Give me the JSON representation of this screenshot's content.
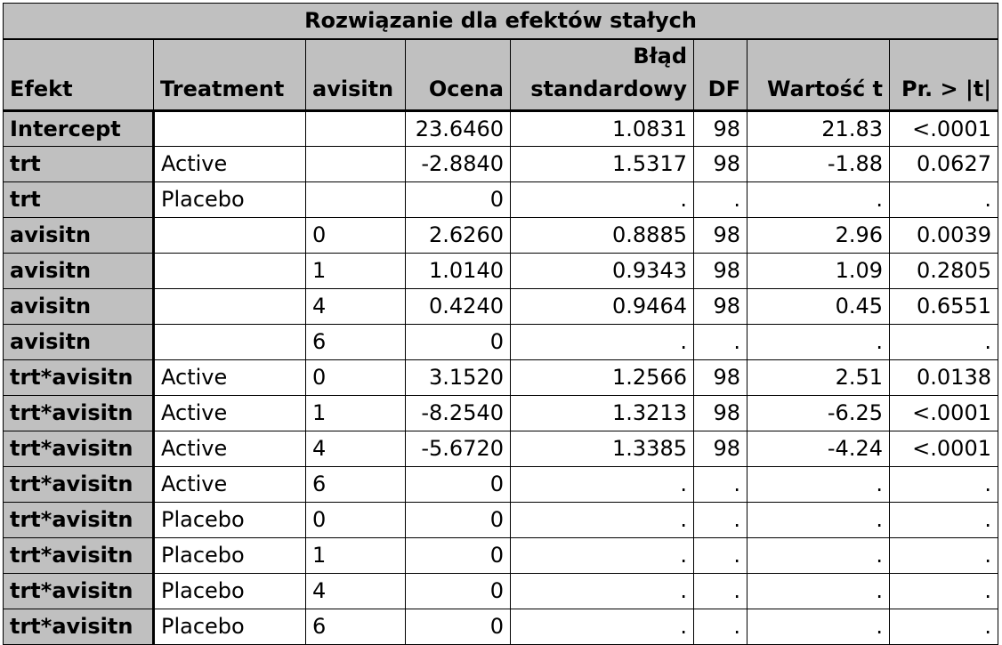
{
  "table": {
    "title": "Rozwiązanie dla efektów stałych",
    "headers": [
      {
        "key": "effect",
        "label": "Efekt",
        "align": "left"
      },
      {
        "key": "treatment",
        "label": "Treatment",
        "align": "left"
      },
      {
        "key": "avisitn",
        "label": "avisitn",
        "align": "left"
      },
      {
        "key": "estimate",
        "label": "Ocena",
        "align": "right"
      },
      {
        "key": "stderr",
        "label": "Błąd\nstandardowy",
        "align": "right"
      },
      {
        "key": "df",
        "label": "DF",
        "align": "right"
      },
      {
        "key": "tvalue",
        "label": "Wartość t",
        "align": "right"
      },
      {
        "key": "pvalue",
        "label": "Pr. > |t|",
        "align": "right"
      }
    ],
    "rows": [
      {
        "effect": "Intercept",
        "treatment": "",
        "avisitn": "",
        "estimate": "23.6460",
        "stderr": "1.0831",
        "df": "98",
        "tvalue": "21.83",
        "pvalue": "<.0001"
      },
      {
        "effect": "trt",
        "treatment": "Active",
        "avisitn": "",
        "estimate": "-2.8840",
        "stderr": "1.5317",
        "df": "98",
        "tvalue": "-1.88",
        "pvalue": "0.0627"
      },
      {
        "effect": "trt",
        "treatment": "Placebo",
        "avisitn": "",
        "estimate": "0",
        "stderr": ".",
        "df": ".",
        "tvalue": ".",
        "pvalue": "."
      },
      {
        "effect": "avisitn",
        "treatment": "",
        "avisitn": "0",
        "estimate": "2.6260",
        "stderr": "0.8885",
        "df": "98",
        "tvalue": "2.96",
        "pvalue": "0.0039"
      },
      {
        "effect": "avisitn",
        "treatment": "",
        "avisitn": "1",
        "estimate": "1.0140",
        "stderr": "0.9343",
        "df": "98",
        "tvalue": "1.09",
        "pvalue": "0.2805"
      },
      {
        "effect": "avisitn",
        "treatment": "",
        "avisitn": "4",
        "estimate": "0.4240",
        "stderr": "0.9464",
        "df": "98",
        "tvalue": "0.45",
        "pvalue": "0.6551"
      },
      {
        "effect": "avisitn",
        "treatment": "",
        "avisitn": "6",
        "estimate": "0",
        "stderr": ".",
        "df": ".",
        "tvalue": ".",
        "pvalue": "."
      },
      {
        "effect": "trt*avisitn",
        "treatment": "Active",
        "avisitn": "0",
        "estimate": "3.1520",
        "stderr": "1.2566",
        "df": "98",
        "tvalue": "2.51",
        "pvalue": "0.0138"
      },
      {
        "effect": "trt*avisitn",
        "treatment": "Active",
        "avisitn": "1",
        "estimate": "-8.2540",
        "stderr": "1.3213",
        "df": "98",
        "tvalue": "-6.25",
        "pvalue": "<.0001"
      },
      {
        "effect": "trt*avisitn",
        "treatment": "Active",
        "avisitn": "4",
        "estimate": "-5.6720",
        "stderr": "1.3385",
        "df": "98",
        "tvalue": "-4.24",
        "pvalue": "<.0001"
      },
      {
        "effect": "trt*avisitn",
        "treatment": "Active",
        "avisitn": "6",
        "estimate": "0",
        "stderr": ".",
        "df": ".",
        "tvalue": ".",
        "pvalue": "."
      },
      {
        "effect": "trt*avisitn",
        "treatment": "Placebo",
        "avisitn": "0",
        "estimate": "0",
        "stderr": ".",
        "df": ".",
        "tvalue": ".",
        "pvalue": "."
      },
      {
        "effect": "trt*avisitn",
        "treatment": "Placebo",
        "avisitn": "1",
        "estimate": "0",
        "stderr": ".",
        "df": ".",
        "tvalue": ".",
        "pvalue": "."
      },
      {
        "effect": "trt*avisitn",
        "treatment": "Placebo",
        "avisitn": "4",
        "estimate": "0",
        "stderr": ".",
        "df": ".",
        "tvalue": ".",
        "pvalue": "."
      },
      {
        "effect": "trt*avisitn",
        "treatment": "Placebo",
        "avisitn": "6",
        "estimate": "0",
        "stderr": ".",
        "df": ".",
        "tvalue": ".",
        "pvalue": "."
      }
    ]
  }
}
